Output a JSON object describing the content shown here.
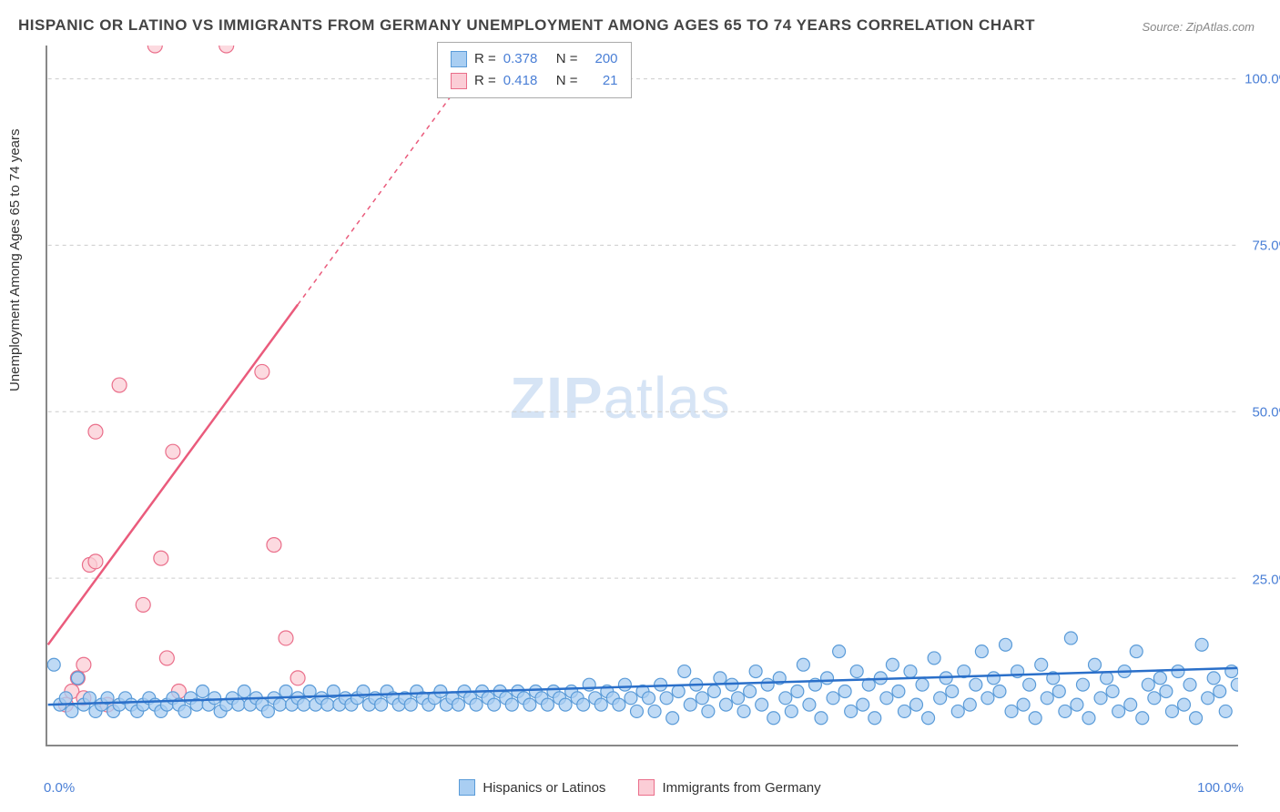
{
  "title": "HISPANIC OR LATINO VS IMMIGRANTS FROM GERMANY UNEMPLOYMENT AMONG AGES 65 TO 74 YEARS CORRELATION CHART",
  "source_label": "Source: ZipAtlas.com",
  "ylabel": "Unemployment Among Ages 65 to 74 years",
  "watermark_a": "ZIP",
  "watermark_b": "atlas",
  "chart": {
    "type": "scatter-with-trendlines",
    "xlim": [
      0,
      100
    ],
    "ylim": [
      0,
      105
    ],
    "x_ticks": [
      0,
      100
    ],
    "x_tick_labels": [
      "0.0%",
      "100.0%"
    ],
    "x_minor_tick_step": 5,
    "y_gridlines": [
      25,
      50,
      75,
      100
    ],
    "y_tick_labels": [
      "25.0%",
      "50.0%",
      "75.0%",
      "100.0%"
    ],
    "background_color": "#ffffff",
    "grid_color": "#cccccc",
    "axis_color": "#888888",
    "tick_label_color": "#4a7fd6"
  },
  "series": {
    "blue": {
      "label": "Hispanics or Latinos",
      "R": "0.378",
      "N": "200",
      "marker_fill": "#a9cef2",
      "marker_stroke": "#5a9bd8",
      "marker_radius": 7,
      "line_color": "#2a6fc9",
      "line_width": 2.5,
      "trend": {
        "x1": 0,
        "y1": 6.0,
        "x2": 100,
        "y2": 11.5,
        "solid_until_x": 100
      },
      "points": [
        [
          0.5,
          12
        ],
        [
          1,
          6
        ],
        [
          1.5,
          7
        ],
        [
          2,
          5
        ],
        [
          2.5,
          10
        ],
        [
          3,
          6
        ],
        [
          3.5,
          7
        ],
        [
          4,
          5
        ],
        [
          4.5,
          6
        ],
        [
          5,
          7
        ],
        [
          5.5,
          5
        ],
        [
          6,
          6
        ],
        [
          6.5,
          7
        ],
        [
          7,
          6
        ],
        [
          7.5,
          5
        ],
        [
          8,
          6
        ],
        [
          8.5,
          7
        ],
        [
          9,
          6
        ],
        [
          9.5,
          5
        ],
        [
          10,
          6
        ],
        [
          10.5,
          7
        ],
        [
          11,
          6
        ],
        [
          11.5,
          5
        ],
        [
          12,
          7
        ],
        [
          12.5,
          6
        ],
        [
          13,
          8
        ],
        [
          13.5,
          6
        ],
        [
          14,
          7
        ],
        [
          14.5,
          5
        ],
        [
          15,
          6
        ],
        [
          15.5,
          7
        ],
        [
          16,
          6
        ],
        [
          16.5,
          8
        ],
        [
          17,
          6
        ],
        [
          17.5,
          7
        ],
        [
          18,
          6
        ],
        [
          18.5,
          5
        ],
        [
          19,
          7
        ],
        [
          19.5,
          6
        ],
        [
          20,
          8
        ],
        [
          20.5,
          6
        ],
        [
          21,
          7
        ],
        [
          21.5,
          6
        ],
        [
          22,
          8
        ],
        [
          22.5,
          6
        ],
        [
          23,
          7
        ],
        [
          23.5,
          6
        ],
        [
          24,
          8
        ],
        [
          24.5,
          6
        ],
        [
          25,
          7
        ],
        [
          25.5,
          6
        ],
        [
          26,
          7
        ],
        [
          26.5,
          8
        ],
        [
          27,
          6
        ],
        [
          27.5,
          7
        ],
        [
          28,
          6
        ],
        [
          28.5,
          8
        ],
        [
          29,
          7
        ],
        [
          29.5,
          6
        ],
        [
          30,
          7
        ],
        [
          30.5,
          6
        ],
        [
          31,
          8
        ],
        [
          31.5,
          7
        ],
        [
          32,
          6
        ],
        [
          32.5,
          7
        ],
        [
          33,
          8
        ],
        [
          33.5,
          6
        ],
        [
          34,
          7
        ],
        [
          34.5,
          6
        ],
        [
          35,
          8
        ],
        [
          35.5,
          7
        ],
        [
          36,
          6
        ],
        [
          36.5,
          8
        ],
        [
          37,
          7
        ],
        [
          37.5,
          6
        ],
        [
          38,
          8
        ],
        [
          38.5,
          7
        ],
        [
          39,
          6
        ],
        [
          39.5,
          8
        ],
        [
          40,
          7
        ],
        [
          40.5,
          6
        ],
        [
          41,
          8
        ],
        [
          41.5,
          7
        ],
        [
          42,
          6
        ],
        [
          42.5,
          8
        ],
        [
          43,
          7
        ],
        [
          43.5,
          6
        ],
        [
          44,
          8
        ],
        [
          44.5,
          7
        ],
        [
          45,
          6
        ],
        [
          45.5,
          9
        ],
        [
          46,
          7
        ],
        [
          46.5,
          6
        ],
        [
          47,
          8
        ],
        [
          47.5,
          7
        ],
        [
          48,
          6
        ],
        [
          48.5,
          9
        ],
        [
          49,
          7
        ],
        [
          49.5,
          5
        ],
        [
          50,
          8
        ],
        [
          50.5,
          7
        ],
        [
          51,
          5
        ],
        [
          51.5,
          9
        ],
        [
          52,
          7
        ],
        [
          52.5,
          4
        ],
        [
          53,
          8
        ],
        [
          53.5,
          11
        ],
        [
          54,
          6
        ],
        [
          54.5,
          9
        ],
        [
          55,
          7
        ],
        [
          55.5,
          5
        ],
        [
          56,
          8
        ],
        [
          56.5,
          10
        ],
        [
          57,
          6
        ],
        [
          57.5,
          9
        ],
        [
          58,
          7
        ],
        [
          58.5,
          5
        ],
        [
          59,
          8
        ],
        [
          59.5,
          11
        ],
        [
          60,
          6
        ],
        [
          60.5,
          9
        ],
        [
          61,
          4
        ],
        [
          61.5,
          10
        ],
        [
          62,
          7
        ],
        [
          62.5,
          5
        ],
        [
          63,
          8
        ],
        [
          63.5,
          12
        ],
        [
          64,
          6
        ],
        [
          64.5,
          9
        ],
        [
          65,
          4
        ],
        [
          65.5,
          10
        ],
        [
          66,
          7
        ],
        [
          66.5,
          14
        ],
        [
          67,
          8
        ],
        [
          67.5,
          5
        ],
        [
          68,
          11
        ],
        [
          68.5,
          6
        ],
        [
          69,
          9
        ],
        [
          69.5,
          4
        ],
        [
          70,
          10
        ],
        [
          70.5,
          7
        ],
        [
          71,
          12
        ],
        [
          71.5,
          8
        ],
        [
          72,
          5
        ],
        [
          72.5,
          11
        ],
        [
          73,
          6
        ],
        [
          73.5,
          9
        ],
        [
          74,
          4
        ],
        [
          74.5,
          13
        ],
        [
          75,
          7
        ],
        [
          75.5,
          10
        ],
        [
          76,
          8
        ],
        [
          76.5,
          5
        ],
        [
          77,
          11
        ],
        [
          77.5,
          6
        ],
        [
          78,
          9
        ],
        [
          78.5,
          14
        ],
        [
          79,
          7
        ],
        [
          79.5,
          10
        ],
        [
          80,
          8
        ],
        [
          80.5,
          15
        ],
        [
          81,
          5
        ],
        [
          81.5,
          11
        ],
        [
          82,
          6
        ],
        [
          82.5,
          9
        ],
        [
          83,
          4
        ],
        [
          83.5,
          12
        ],
        [
          84,
          7
        ],
        [
          84.5,
          10
        ],
        [
          85,
          8
        ],
        [
          85.5,
          5
        ],
        [
          86,
          16
        ],
        [
          86.5,
          6
        ],
        [
          87,
          9
        ],
        [
          87.5,
          4
        ],
        [
          88,
          12
        ],
        [
          88.5,
          7
        ],
        [
          89,
          10
        ],
        [
          89.5,
          8
        ],
        [
          90,
          5
        ],
        [
          90.5,
          11
        ],
        [
          91,
          6
        ],
        [
          91.5,
          14
        ],
        [
          92,
          4
        ],
        [
          92.5,
          9
        ],
        [
          93,
          7
        ],
        [
          93.5,
          10
        ],
        [
          94,
          8
        ],
        [
          94.5,
          5
        ],
        [
          95,
          11
        ],
        [
          95.5,
          6
        ],
        [
          96,
          9
        ],
        [
          96.5,
          4
        ],
        [
          97,
          15
        ],
        [
          97.5,
          7
        ],
        [
          98,
          10
        ],
        [
          98.5,
          8
        ],
        [
          99,
          5
        ],
        [
          99.5,
          11
        ],
        [
          100,
          9
        ]
      ]
    },
    "pink": {
      "label": "Immigrants from Germany",
      "R": "0.418",
      "N": "21",
      "marker_fill": "#fbcdd6",
      "marker_stroke": "#ea6e8a",
      "marker_radius": 8,
      "line_color": "#ea5b7c",
      "line_width": 2.5,
      "trend": {
        "x1": 0,
        "y1": 15,
        "x2": 37,
        "y2": 105,
        "solid_until_x": 21
      },
      "points": [
        [
          1.5,
          6
        ],
        [
          2,
          8
        ],
        [
          2.5,
          10
        ],
        [
          3,
          7
        ],
        [
          3.5,
          27
        ],
        [
          4,
          27.5
        ],
        [
          4,
          47
        ],
        [
          6,
          54
        ],
        [
          8,
          21
        ],
        [
          9,
          105
        ],
        [
          9.5,
          28
        ],
        [
          10,
          13
        ],
        [
          10.5,
          44
        ],
        [
          11,
          8
        ],
        [
          15,
          105
        ],
        [
          18,
          56
        ],
        [
          19,
          30
        ],
        [
          20,
          16
        ],
        [
          21,
          10
        ],
        [
          3,
          12
        ],
        [
          5,
          6
        ]
      ]
    }
  },
  "legend_top_rows": [
    {
      "swatch_fill": "#a9cef2",
      "swatch_stroke": "#5a9bd8",
      "R": "0.378",
      "N": "200"
    },
    {
      "swatch_fill": "#fbcdd6",
      "swatch_stroke": "#ea6e8a",
      "R": "0.418",
      "N": "21"
    }
  ]
}
